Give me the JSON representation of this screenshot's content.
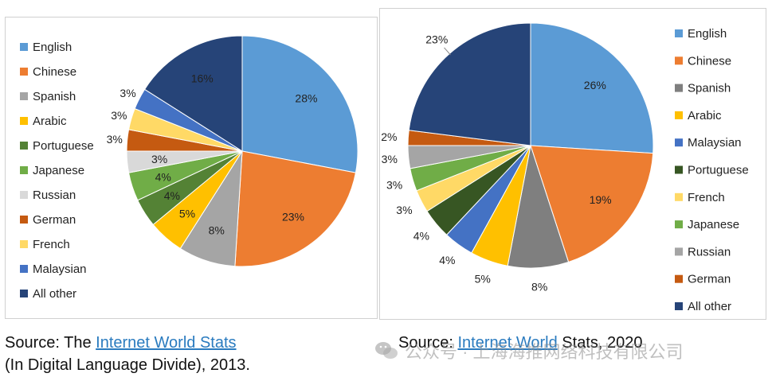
{
  "chart_data": [
    {
      "type": "pie",
      "categories": [
        "English",
        "Chinese",
        "Spanish",
        "Arabic",
        "Portuguese",
        "Japanese",
        "Russian",
        "German",
        "French",
        "Malaysian",
        "All other"
      ],
      "values": [
        28,
        23,
        8,
        5,
        4,
        4,
        3,
        3,
        3,
        3,
        16
      ],
      "data_labels": [
        "28%",
        "23%",
        "8%",
        "5%",
        "4%",
        "4%",
        "3%",
        "3%",
        "3%",
        "3%",
        "16%"
      ],
      "colors": [
        "#5b9bd5",
        "#ed7d31",
        "#a5a5a5",
        "#ffc000",
        "#548235",
        "#70ad47",
        "#d9d9d9",
        "#c55a11",
        "#ffd966",
        "#4472c4",
        "#264478"
      ],
      "legend": [
        "English",
        "Chinese",
        "Spanish",
        "Arabic",
        "Portuguese",
        "Japanese",
        "Russian",
        "German",
        "French",
        "Malaysian",
        "All other"
      ],
      "legend_position": "left"
    },
    {
      "type": "pie",
      "categories": [
        "English",
        "Chinese",
        "Spanish",
        "Arabic",
        "Malaysian",
        "Portuguese",
        "French",
        "Japanese",
        "Russian",
        "German",
        "All other"
      ],
      "values": [
        26,
        19,
        8,
        5,
        4,
        4,
        3,
        3,
        3,
        2,
        23
      ],
      "data_labels": [
        "26%",
        "19%",
        "8%",
        "5%",
        "4%",
        "4%",
        "3%",
        "3%",
        "3%",
        "2%",
        "23%"
      ],
      "colors": [
        "#5b9bd5",
        "#ed7d31",
        "#7f7f7f",
        "#ffc000",
        "#4472c4",
        "#375623",
        "#ffd966",
        "#70ad47",
        "#a5a5a5",
        "#c55a11",
        "#264478"
      ],
      "legend": [
        "English",
        "Chinese",
        "Spanish",
        "Arabic",
        "Malaysian",
        "Portuguese",
        "French",
        "Japanese",
        "Russian",
        "German",
        "All other"
      ],
      "legend_position": "right"
    }
  ],
  "captions": {
    "left": {
      "prefix": "Source: The ",
      "link": "Internet World Stats",
      "line2": "(In Digital Language Divide), 2013."
    },
    "right": {
      "prefix": "Source: ",
      "link": "Internet World",
      "suffix": " Stats, 2020"
    }
  },
  "watermark": {
    "text": "公众号 · 上海海推网络科技有限公司",
    "icon": "wechat-icon"
  }
}
